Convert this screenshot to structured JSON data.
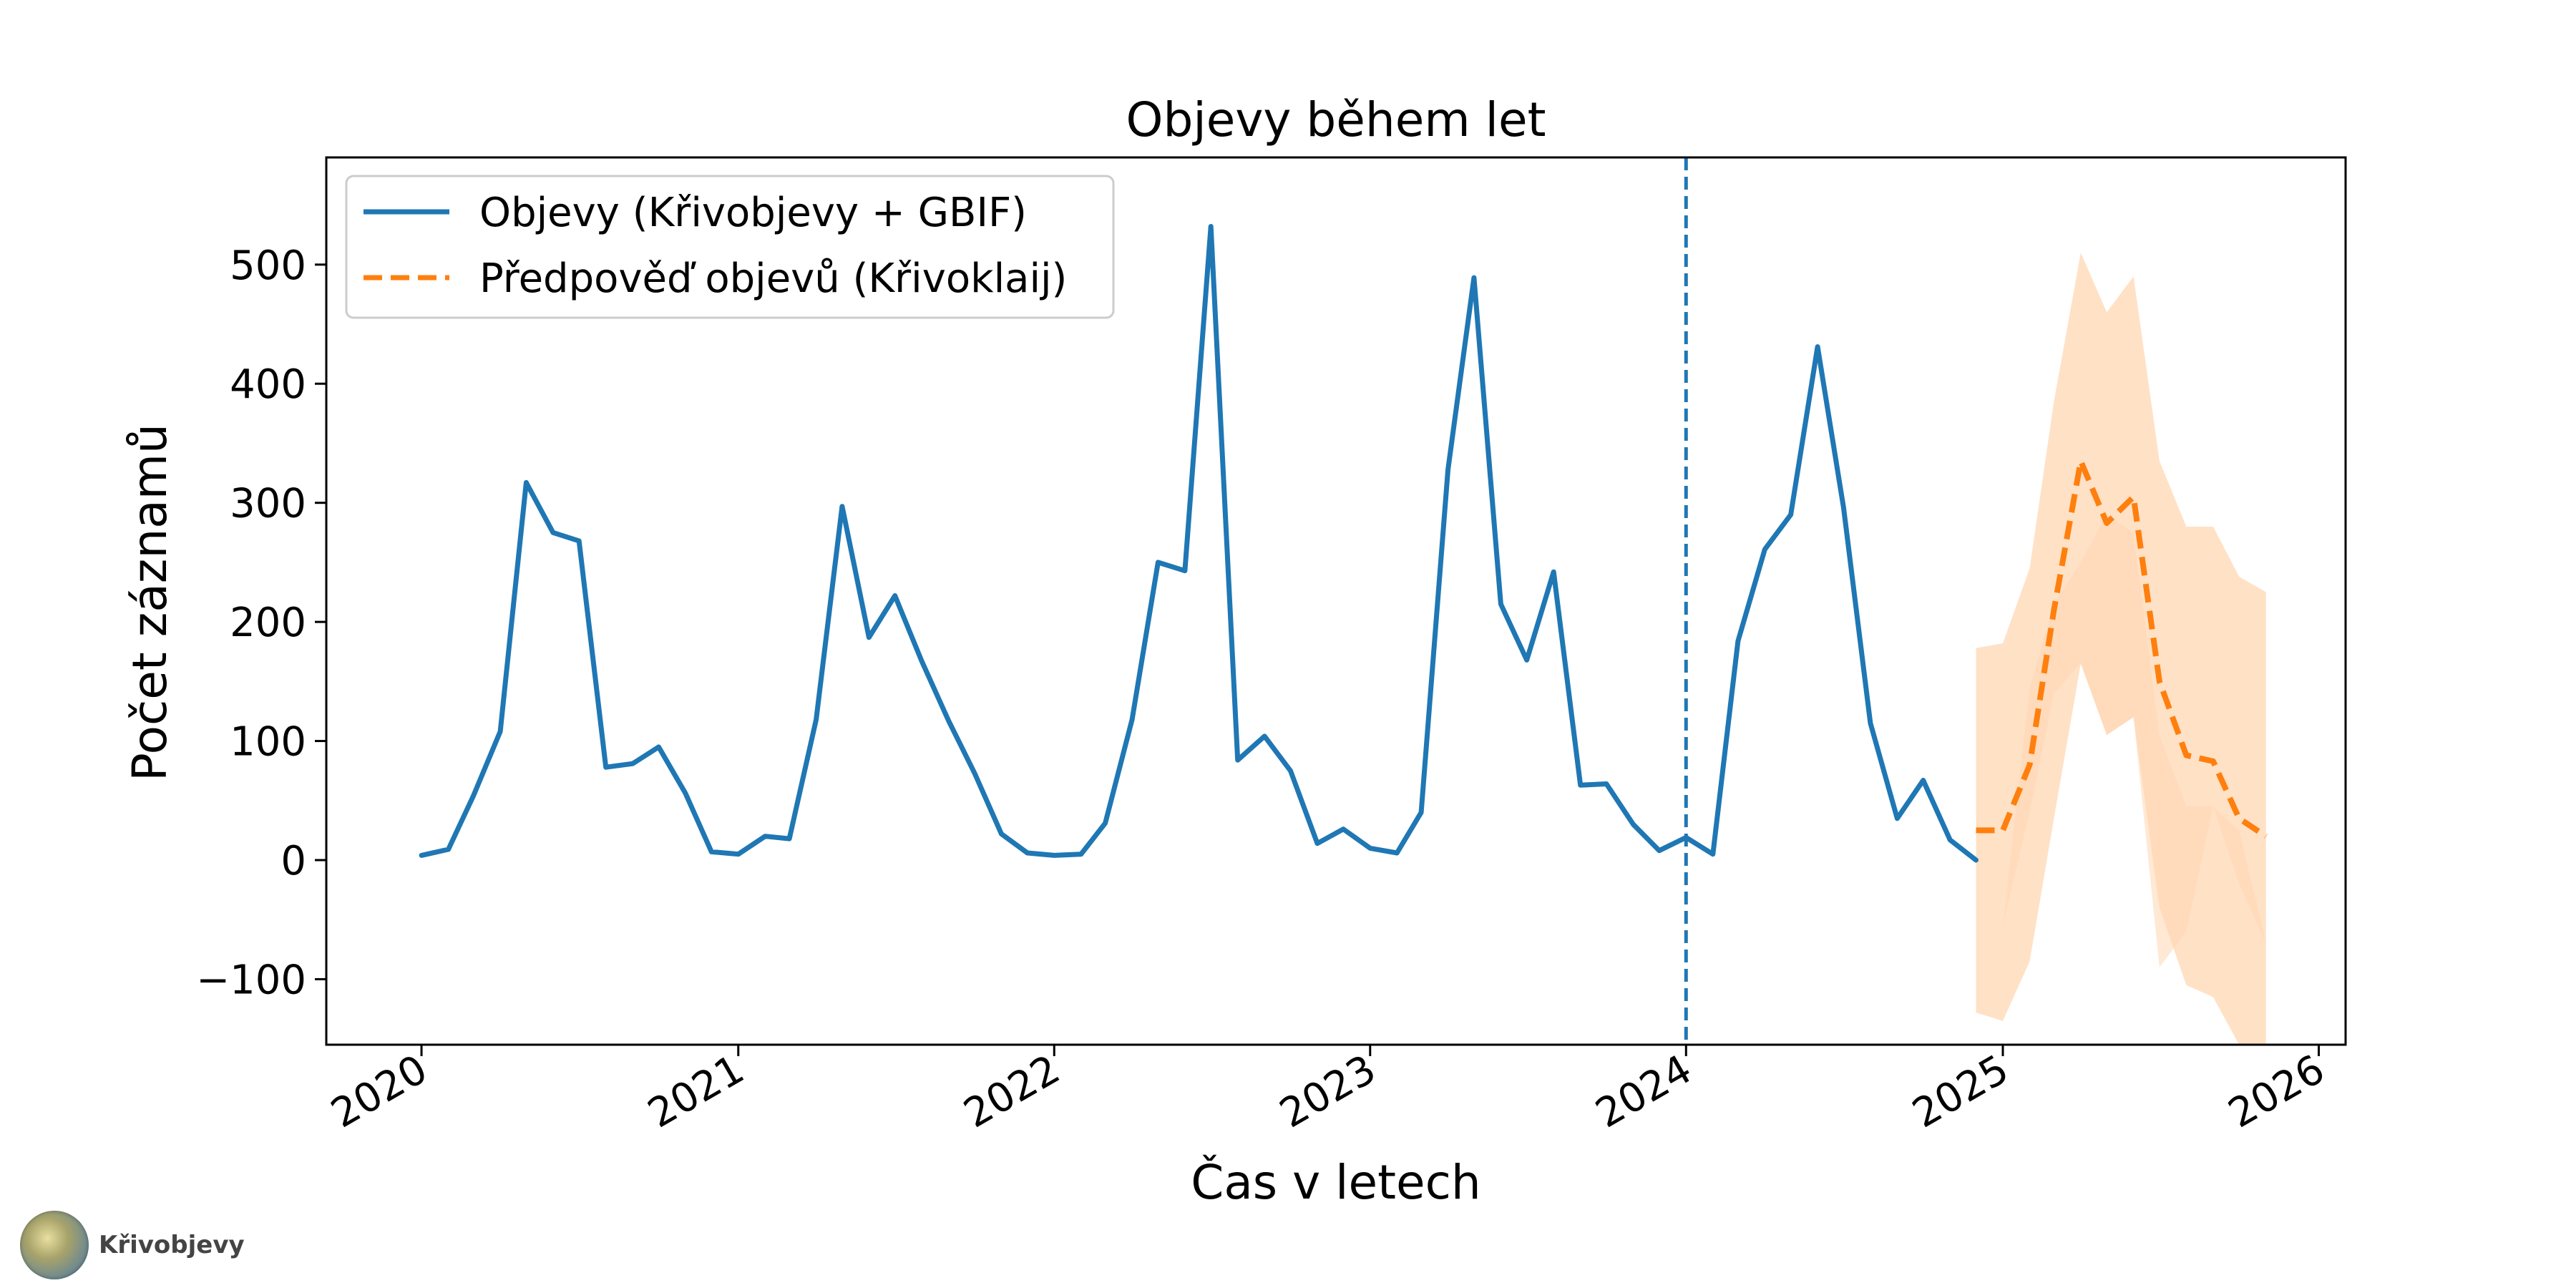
{
  "brand": {
    "name": "Křivobjevy",
    "logo_icon": "globe-logo-icon"
  },
  "colors": {
    "observed": "#1f77b4",
    "forecast": "#ff7f0e",
    "band": "#ffd7b3"
  },
  "chart_data": {
    "type": "line",
    "title": "Objevy během let",
    "xlabel": "Čas v letech",
    "ylabel": "Počet záznamů",
    "x_axis_type": "date",
    "xlim": [
      "2019-09-13",
      "2026-02-01"
    ],
    "ylim": [
      -155,
      590
    ],
    "x_ticks": [
      "2020-01-01",
      "2021-01-01",
      "2022-01-01",
      "2023-01-01",
      "2024-01-01",
      "2025-01-01",
      "2026-01-01"
    ],
    "x_tick_labels": [
      "2020",
      "2021",
      "2022",
      "2023",
      "2024",
      "2025",
      "2026"
    ],
    "y_ticks": [
      -100,
      0,
      100,
      200,
      300,
      400,
      500
    ],
    "y_tick_labels": [
      "−100",
      "0",
      "100",
      "200",
      "300",
      "400",
      "500"
    ],
    "grid": false,
    "legend": {
      "placement": "top-left"
    },
    "vertical_line": {
      "x": "2024-01-01",
      "style": "dashed"
    },
    "series": [
      {
        "name": "Objevy (Křivobjevy + GBIF)",
        "style": "solid",
        "x": [
          "2020-01-01",
          "2020-02-01",
          "2020-03-01",
          "2020-04-01",
          "2020-05-01",
          "2020-06-01",
          "2020-07-01",
          "2020-08-01",
          "2020-09-01",
          "2020-10-01",
          "2020-11-01",
          "2020-12-01",
          "2021-01-01",
          "2021-02-01",
          "2021-03-01",
          "2021-04-01",
          "2021-05-01",
          "2021-06-01",
          "2021-07-01",
          "2021-08-01",
          "2021-09-01",
          "2021-10-01",
          "2021-11-01",
          "2021-12-01",
          "2022-01-01",
          "2022-02-01",
          "2022-03-01",
          "2022-04-01",
          "2022-05-01",
          "2022-06-01",
          "2022-07-01",
          "2022-08-01",
          "2022-09-01",
          "2022-10-01",
          "2022-11-01",
          "2022-12-01",
          "2023-01-01",
          "2023-02-01",
          "2023-03-01",
          "2023-04-01",
          "2023-05-01",
          "2023-06-01",
          "2023-07-01",
          "2023-08-01",
          "2023-09-01",
          "2023-10-01",
          "2023-11-01",
          "2023-12-01",
          "2024-01-01",
          "2024-02-01",
          "2024-03-01",
          "2024-04-01",
          "2024-05-01",
          "2024-06-01",
          "2024-07-01",
          "2024-08-01",
          "2024-09-01",
          "2024-10-01",
          "2024-11-01",
          "2024-12-01"
        ],
        "y": [
          4,
          9,
          54,
          108,
          317,
          275,
          268,
          78,
          81,
          95,
          56,
          7,
          5,
          20,
          18,
          118,
          297,
          187,
          222,
          167,
          117,
          73,
          22,
          6,
          4,
          5,
          31,
          118,
          250,
          243,
          532,
          84,
          104,
          75,
          14,
          26,
          10,
          6,
          40,
          328,
          489,
          215,
          168,
          242,
          63,
          64,
          30,
          8,
          19,
          5,
          184,
          261,
          290,
          431,
          296,
          115,
          35,
          67,
          17,
          0
        ]
      },
      {
        "name": "Předpověď objevů (Křivoklaij)",
        "style": "dashed",
        "x": [
          "2024-12-01",
          "2025-01-01",
          "2025-02-01",
          "2025-03-01",
          "2025-04-01",
          "2025-05-01",
          "2025-06-01",
          "2025-07-01",
          "2025-08-01",
          "2025-09-01",
          "2025-10-01",
          "2025-11-01"
        ],
        "y": [
          25,
          25,
          80,
          210,
          335,
          283,
          305,
          150,
          88,
          83,
          35,
          20
        ],
        "band_upper": [
          178,
          182,
          245,
          385,
          510,
          460,
          490,
          335,
          280,
          280,
          238,
          225
        ],
        "band_lower": [
          -128,
          -135,
          -85,
          35,
          165,
          105,
          120,
          -40,
          -105,
          -115,
          -155,
          -155
        ],
        "band_inner_upper": [
          -50,
          -55,
          145,
          215,
          250,
          290,
          275,
          105,
          45,
          45,
          25,
          -70
        ],
        "band_inner_lower": [
          -50,
          -55,
          40,
          140,
          165,
          105,
          120,
          -90,
          -60,
          45,
          -20,
          -70
        ]
      }
    ]
  }
}
